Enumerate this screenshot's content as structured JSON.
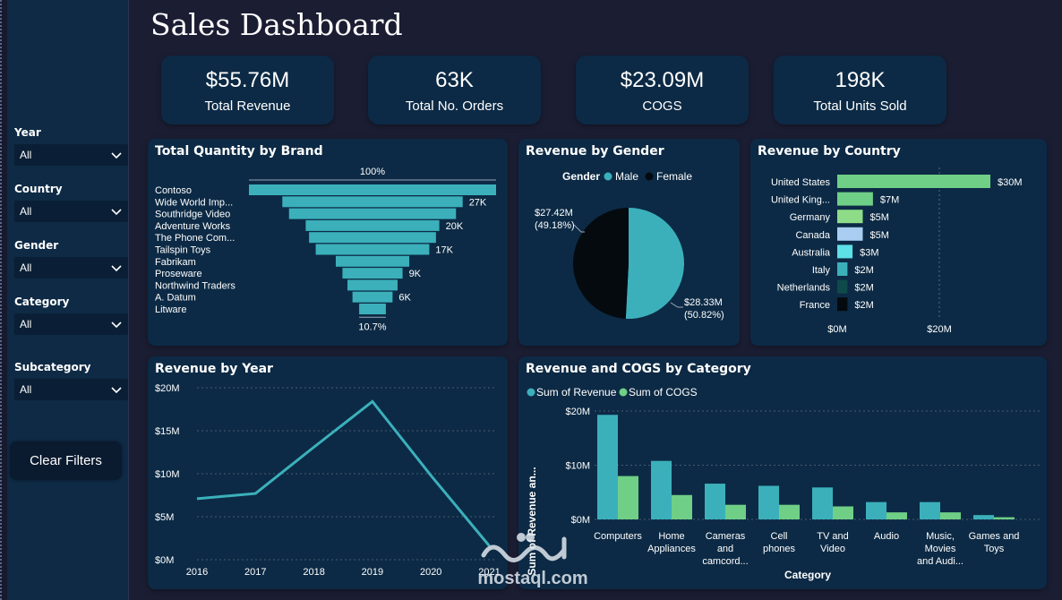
{
  "title": "Sales Dashboard",
  "filters": [
    {
      "label": "Year",
      "value": "All"
    },
    {
      "label": "Country",
      "value": "All"
    },
    {
      "label": "Gender",
      "value": "All"
    },
    {
      "label": "Category",
      "value": "All"
    },
    {
      "label": "Subcategory",
      "value": "All"
    }
  ],
  "clear_filters_label": "Clear Filters",
  "kpis": [
    {
      "value": "$55.76M",
      "label": "Total Revenue"
    },
    {
      "value": "63K",
      "label": "Total No. Orders"
    },
    {
      "value": "$23.09M",
      "label": "COGS"
    },
    {
      "value": "198K",
      "label": "Total Units Sold"
    }
  ],
  "colors": {
    "teal": "#3bb0bb",
    "green": "#6fcf86",
    "light_green": "#8fdc88",
    "light_blue": "#a8cdf0",
    "cyan": "#5de0e6",
    "dark_teal": "#0f4a4a",
    "black": "#050a0f",
    "panel": "#0c2a45"
  },
  "watermark": {
    "text": "mostaql.com"
  },
  "chart_data": [
    {
      "type": "funnel",
      "title": "Total Quantity by Brand",
      "top_label": "100%",
      "bottom_label": "10.7%",
      "categories": [
        "Contoso",
        "Wide World Imp...",
        "Southridge Video",
        "Adventure Works",
        "The Phone Com...",
        "Tailspin Toys",
        "Fabrikam",
        "Proseware",
        "Northwind Traders",
        "A. Datum",
        "Litware"
      ],
      "values": [
        37,
        27,
        25,
        20,
        19,
        17,
        11,
        9,
        7.5,
        6,
        4
      ],
      "data_labels": [
        "",
        "27K",
        "",
        "20K",
        "",
        "17K",
        "",
        "9K",
        "",
        "6K",
        ""
      ]
    },
    {
      "type": "pie",
      "title": "Revenue by Gender",
      "legend_title": "Gender",
      "legend_position": "top",
      "categories": [
        "Male",
        "Female"
      ],
      "values": [
        28.33,
        27.42
      ],
      "data_labels": [
        [
          "$28.33M",
          "(50.82%)"
        ],
        [
          "$27.42M",
          "(49.18%)"
        ]
      ]
    },
    {
      "type": "bar",
      "orientation": "horizontal",
      "title": "Revenue by Country",
      "categories": [
        "United States",
        "United King...",
        "Germany",
        "Canada",
        "Australia",
        "Italy",
        "Netherlands",
        "France"
      ],
      "values": [
        30,
        7,
        5,
        5,
        3,
        2,
        2,
        2
      ],
      "data_labels": [
        "$30M",
        "$7M",
        "$5M",
        "$5M",
        "$3M",
        "$2M",
        "$2M",
        "$2M"
      ],
      "xlim": [
        0,
        35
      ],
      "ticks": [
        {
          "value": 0,
          "label": "$0M"
        },
        {
          "value": 20,
          "label": "$20M"
        }
      ]
    },
    {
      "type": "line",
      "title": "Revenue by Year",
      "x": [
        "2016",
        "2017",
        "2018",
        "2019",
        "2020",
        "2021"
      ],
      "values": [
        7.1,
        7.7,
        13.1,
        18.4,
        9.8,
        1.6
      ],
      "ylim": [
        0,
        20
      ],
      "ticks": [
        {
          "value": 0,
          "label": "$0M"
        },
        {
          "value": 5,
          "label": "$5M"
        },
        {
          "value": 10,
          "label": "$10M"
        },
        {
          "value": 15,
          "label": "$15M"
        },
        {
          "value": 20,
          "label": "$20M"
        }
      ]
    },
    {
      "type": "bar",
      "title": "Revenue and COGS by Category",
      "xlabel": "Category",
      "ylabel": "Sum of Revenue an...",
      "legend_position": "top-left",
      "categories": [
        [
          "Computers"
        ],
        [
          "Home",
          "Appliances"
        ],
        [
          "Cameras",
          "and",
          "camcord..."
        ],
        [
          "Cell",
          "phones"
        ],
        [
          "TV and",
          "Video"
        ],
        [
          "Audio"
        ],
        [
          "Music,",
          "Movies",
          "and Audi..."
        ],
        [
          "Games and",
          "Toys"
        ]
      ],
      "series": [
        {
          "name": "Sum of Revenue",
          "values": [
            19.3,
            10.8,
            6.6,
            6.2,
            5.9,
            3.2,
            3.2,
            0.8
          ]
        },
        {
          "name": "Sum of COGS",
          "values": [
            8.0,
            4.5,
            2.7,
            2.7,
            2.4,
            1.3,
            1.3,
            0.4
          ]
        }
      ],
      "ylim": [
        0,
        20
      ],
      "ticks": [
        {
          "value": 0,
          "label": "$0M"
        },
        {
          "value": 10,
          "label": "$10M"
        },
        {
          "value": 20,
          "label": "$20M"
        }
      ]
    }
  ]
}
